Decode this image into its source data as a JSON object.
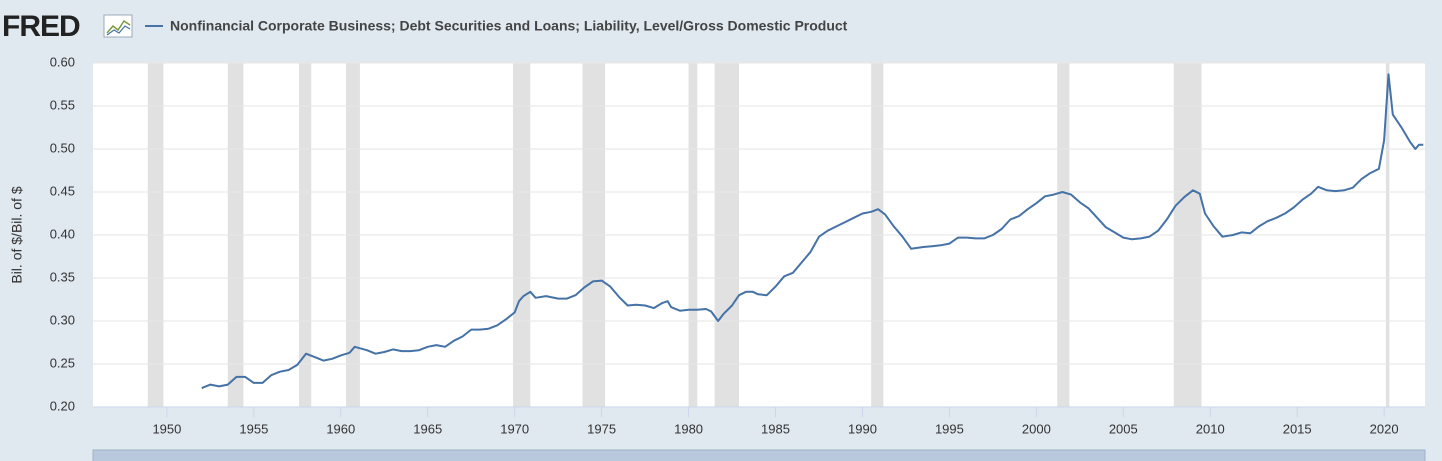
{
  "chart_data": {
    "type": "line",
    "logo": "FRED",
    "ylabel": "Bil. of $/Bil. of $",
    "x": [
      1952,
      1952.5,
      1953,
      1953.5,
      1954,
      1954.5,
      1955,
      1955.5,
      1956,
      1956.5,
      1957,
      1957.5,
      1958,
      1958.5,
      1959,
      1959.5,
      1960,
      1960.5,
      1960.8,
      1961.5,
      1962,
      1962.5,
      1963,
      1963.5,
      1964,
      1964.5,
      1965,
      1965.5,
      1966,
      1966.5,
      1967,
      1967.5,
      1968,
      1968.5,
      1969,
      1969.5,
      1970,
      1970.25,
      1970.5,
      1970.9,
      1971.2,
      1971.8,
      1972.5,
      1973,
      1973.5,
      1974,
      1974.5,
      1975,
      1975.5,
      1976,
      1976.5,
      1977,
      1977.5,
      1978,
      1978.5,
      1978.8,
      1979,
      1979.5,
      1980,
      1980.5,
      1981,
      1981.3,
      1981.7,
      1982,
      1982.5,
      1982.9,
      1983.3,
      1983.7,
      1984,
      1984.5,
      1985,
      1985.5,
      1986,
      1986.5,
      1987,
      1987.5,
      1988,
      1988.5,
      1989,
      1989.5,
      1990,
      1990.5,
      1990.9,
      1991.3,
      1991.8,
      1992.3,
      1992.8,
      1993.5,
      1994,
      1994.5,
      1995,
      1995.5,
      1996,
      1996.5,
      1997,
      1997.5,
      1998,
      1998.5,
      1999,
      1999.5,
      2000,
      2000.5,
      2001,
      2001.5,
      2002,
      2002.5,
      2003,
      2003.5,
      2004,
      2004.5,
      2005,
      2005.5,
      2006,
      2006.5,
      2007,
      2007.5,
      2008,
      2008.5,
      2009,
      2009.4,
      2009.7,
      2010.2,
      2010.7,
      2011.3,
      2011.8,
      2012.3,
      2012.8,
      2013.3,
      2013.8,
      2014.3,
      2014.8,
      2015.3,
      2015.8,
      2016.2,
      2016.7,
      2017.2,
      2017.7,
      2018.2,
      2018.7,
      2019.2,
      2019.7,
      2020,
      2020.25,
      2020.5,
      2021,
      2021.5,
      2021.8,
      2022,
      2022.25
    ],
    "series": [
      {
        "name": "Nonfinancial Corporate Business; Debt Securities and Loans; Liability, Level/Gross Domestic Product",
        "color": "#4572a7",
        "values": [
          0.222,
          0.226,
          0.224,
          0.226,
          0.235,
          0.235,
          0.228,
          0.228,
          0.237,
          0.241,
          0.243,
          0.249,
          0.262,
          0.258,
          0.254,
          0.256,
          0.26,
          0.263,
          0.27,
          0.266,
          0.262,
          0.264,
          0.267,
          0.265,
          0.265,
          0.266,
          0.27,
          0.272,
          0.27,
          0.277,
          0.282,
          0.29,
          0.29,
          0.291,
          0.295,
          0.302,
          0.31,
          0.323,
          0.329,
          0.334,
          0.327,
          0.329,
          0.326,
          0.326,
          0.33,
          0.339,
          0.346,
          0.347,
          0.34,
          0.328,
          0.318,
          0.319,
          0.318,
          0.315,
          0.321,
          0.323,
          0.316,
          0.312,
          0.313,
          0.313,
          0.314,
          0.311,
          0.3,
          0.308,
          0.318,
          0.33,
          0.334,
          0.334,
          0.331,
          0.33,
          0.34,
          0.352,
          0.356,
          0.368,
          0.38,
          0.398,
          0.405,
          0.41,
          0.415,
          0.42,
          0.425,
          0.427,
          0.43,
          0.424,
          0.41,
          0.398,
          0.384,
          0.386,
          0.387,
          0.388,
          0.39,
          0.397,
          0.397,
          0.396,
          0.396,
          0.4,
          0.407,
          0.418,
          0.422,
          0.43,
          0.437,
          0.445,
          0.447,
          0.45,
          0.447,
          0.438,
          0.431,
          0.42,
          0.409,
          0.403,
          0.397,
          0.395,
          0.396,
          0.398,
          0.405,
          0.418,
          0.434,
          0.444,
          0.452,
          0.448,
          0.425,
          0.41,
          0.398,
          0.4,
          0.403,
          0.402,
          0.41,
          0.416,
          0.42,
          0.425,
          0.432,
          0.441,
          0.448,
          0.456,
          0.452,
          0.451,
          0.452,
          0.455,
          0.465,
          0.472,
          0.477,
          0.51,
          0.587,
          0.54,
          0.525,
          0.508,
          0.5,
          0.505,
          0.505
        ]
      }
    ],
    "recessions": [
      [
        1948.9,
        1949.8
      ],
      [
        1953.5,
        1954.4
      ],
      [
        1957.6,
        1958.3
      ],
      [
        1960.3,
        1961.1
      ],
      [
        1969.9,
        1970.9
      ],
      [
        1973.9,
        1975.2
      ],
      [
        1980.0,
        1980.5
      ],
      [
        1981.5,
        1982.9
      ],
      [
        1990.5,
        1991.2
      ],
      [
        2001.2,
        2001.9
      ],
      [
        2007.9,
        2009.5
      ],
      [
        2020.1,
        2020.3
      ]
    ],
    "xlim": [
      1945.75,
      2022.35
    ],
    "xticks": [
      1950,
      1955,
      1960,
      1965,
      1970,
      1975,
      1980,
      1985,
      1990,
      1995,
      2000,
      2005,
      2010,
      2015,
      2020
    ],
    "ylim": [
      0.2,
      0.6
    ],
    "yticks": [
      {
        "value": 0.2,
        "label": "0.20"
      },
      0.25,
      {
        "value": 0.3,
        "label": "0.30"
      },
      0.35,
      {
        "value": 0.4,
        "label": "0.40"
      },
      0.45,
      {
        "value": 0.5,
        "label": "0.50"
      },
      0.55,
      {
        "value": 0.6,
        "label": "0.60"
      }
    ],
    "grid": true
  }
}
